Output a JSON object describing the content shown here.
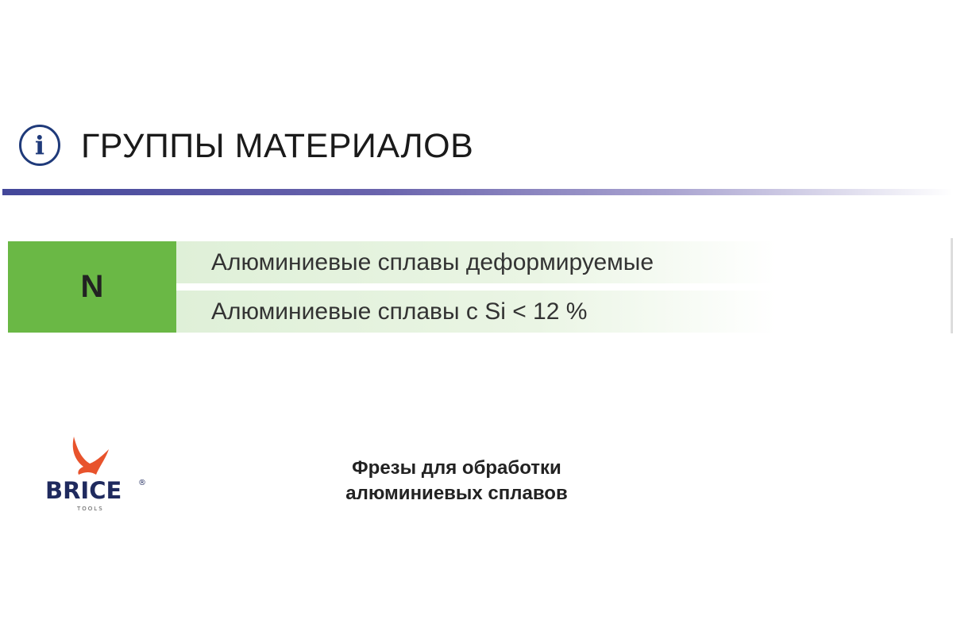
{
  "header": {
    "icon": "info-icon",
    "icon_glyph": "i",
    "title": "ГРУППЫ МАТЕРИАЛОВ"
  },
  "group": {
    "code": "N",
    "color": "#6ab845",
    "items": [
      "Алюминиевые сплавы деформируемые",
      "Алюминиевые сплавы с Si < 12 %"
    ]
  },
  "logo": {
    "brand": "BRICE",
    "sub": "TOOLS",
    "mark": "®"
  },
  "caption": {
    "line1": "Фрезы для обработки",
    "line2": "алюминиевых сплавов"
  }
}
